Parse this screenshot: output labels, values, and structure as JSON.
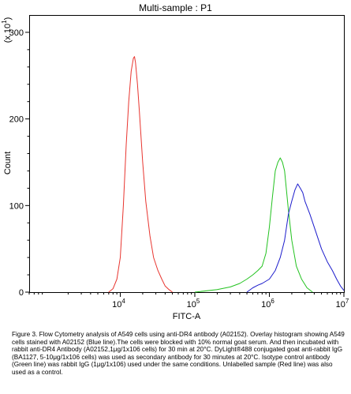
{
  "chart_data": {
    "type": "line",
    "title": "Multi-sample : P1",
    "xlabel": "FITC-A",
    "ylabel": "Count",
    "y_multiplier_label": "(x 10",
    "y_multiplier_exp": "1",
    "y_multiplier_close": ")",
    "x_scale": "log",
    "xlim": [
      600,
      10000000
    ],
    "ylim": [
      0,
      320
    ],
    "y_ticks": [
      {
        "v": 0,
        "label": "0"
      },
      {
        "v": 100,
        "label": "100"
      },
      {
        "v": 200,
        "label": "200"
      },
      {
        "v": 300,
        "label": "300"
      }
    ],
    "x_ticks": [
      {
        "v": 10000,
        "base": "10",
        "exp": "4"
      },
      {
        "v": 100000,
        "base": "10",
        "exp": "5"
      },
      {
        "v": 1000000,
        "base": "10",
        "exp": "6"
      },
      {
        "v": 10000000,
        "base": "10",
        "exp": "7"
      }
    ],
    "grid": false,
    "legend": "none",
    "series": [
      {
        "color": "#e8352f",
        "x": [
          7000,
          8000,
          9000,
          10000,
          11000,
          12000,
          13000,
          14000,
          15000,
          15500,
          16000,
          17000,
          18000,
          20000,
          22000,
          25000,
          28000,
          32000,
          36000,
          40000,
          45000,
          50000
        ],
        "y": [
          0,
          4,
          15,
          40,
          100,
          170,
          220,
          255,
          270,
          272,
          265,
          240,
          210,
          150,
          105,
          65,
          40,
          25,
          15,
          7,
          3,
          0
        ]
      },
      {
        "color": "#22c21f",
        "x": [
          100000,
          200000,
          300000,
          400000,
          500000,
          600000,
          700000,
          800000,
          900000,
          1000000,
          1100000,
          1200000,
          1300000,
          1400000,
          1500000,
          1600000,
          1800000,
          2000000,
          2300000,
          2700000,
          3200000,
          3800000
        ],
        "y": [
          0,
          3,
          6,
          10,
          15,
          20,
          25,
          30,
          45,
          75,
          110,
          140,
          150,
          155,
          150,
          140,
          95,
          60,
          30,
          15,
          5,
          0
        ]
      },
      {
        "color": "#1c1ccc",
        "x": [
          500000,
          600000,
          700000,
          800000,
          1000000,
          1200000,
          1400000,
          1600000,
          1800000,
          2000000,
          2200000,
          2400000,
          2600000,
          2800000,
          3000000,
          3500000,
          4000000,
          5000000,
          6000000,
          7000000,
          8000000,
          9000000,
          10000000
        ],
        "y": [
          0,
          5,
          8,
          10,
          15,
          25,
          40,
          60,
          90,
          105,
          118,
          125,
          120,
          115,
          105,
          90,
          75,
          50,
          35,
          25,
          15,
          7,
          2
        ]
      }
    ]
  },
  "caption": "Figure 3. Flow Cytometry analysis of A549 cells using anti-DR4 antibody (A02152). Overlay histogram showing A549 cells stained with A02152 (Blue line).The cells were blocked with 10% normal goat serum. And then incubated with rabbit anti-DR4 Antibody (A02152,1μg/1x106 cells) for 30 min at 20°C. DyLight®488 conjugated goat anti-rabbit IgG (BA1127, 5-10μg/1x106 cells) was used as secondary antibody for 30 minutes at 20°C. Isotype control antibody (Green line) was rabbit IgG (1μg/1x106) used under the same conditions. Unlabelled sample (Red line) was also used as a control."
}
